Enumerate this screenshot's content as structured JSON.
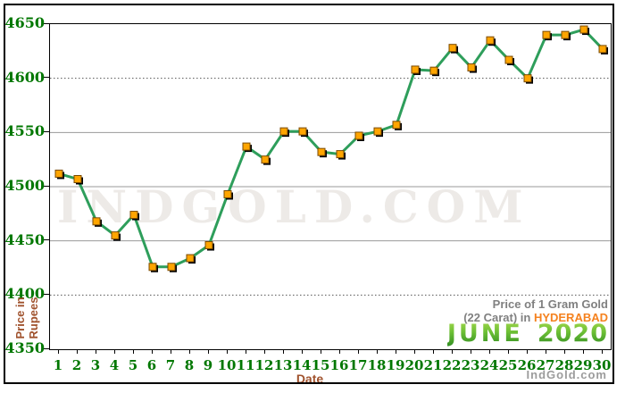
{
  "figure": {
    "watermark": "INDGOLD.COM",
    "footer_credit": "IndGold.com",
    "annotation": {
      "line1": "Price of 1 Gram Gold",
      "line2_prefix": "(22 Carat) in ",
      "city": "HYDERABAD",
      "month": "JUNE",
      "year": "2020"
    },
    "colors": {
      "line": "#2E9E5B",
      "marker_fill": "#FFA500",
      "marker_border": "#7A4A00",
      "marker_shadow": "#000000",
      "grid_solid": "#999999",
      "grid_dotted": "#555555",
      "tick_label_green": "#007700",
      "axis_title_brown": "#A0522D",
      "city_orange": "#F5821F",
      "title_gray": "#808080",
      "watermark_gray": "#edeae7",
      "footer_gray": "#9c9c9c"
    }
  },
  "chart_data": {
    "type": "line",
    "title": "Price of 1 Gram Gold (22 Carat) in HYDERABAD - JUNE 2020",
    "xlabel": "Date",
    "ylabel": "Price in Rupees",
    "x": [
      1,
      2,
      3,
      4,
      5,
      6,
      7,
      8,
      9,
      10,
      11,
      12,
      13,
      14,
      15,
      16,
      17,
      18,
      19,
      20,
      21,
      22,
      23,
      24,
      25,
      26,
      27,
      28,
      29,
      30
    ],
    "values": [
      4512,
      4507,
      4468,
      4455,
      4474,
      4426,
      4426,
      4434,
      4446,
      4493,
      4537,
      4525,
      4551,
      4551,
      4532,
      4530,
      4547,
      4551,
      4557,
      4608,
      4607,
      4628,
      4610,
      4635,
      4617,
      4600,
      4640,
      4640,
      4645,
      4627
    ],
    "ylim": [
      4350,
      4650
    ],
    "yticks": [
      4650,
      4600,
      4550,
      4500,
      4450,
      4400,
      4350
    ],
    "dotted_gridlines": [
      4600,
      4400
    ],
    "grid": true,
    "legend": false,
    "marker": "square"
  }
}
